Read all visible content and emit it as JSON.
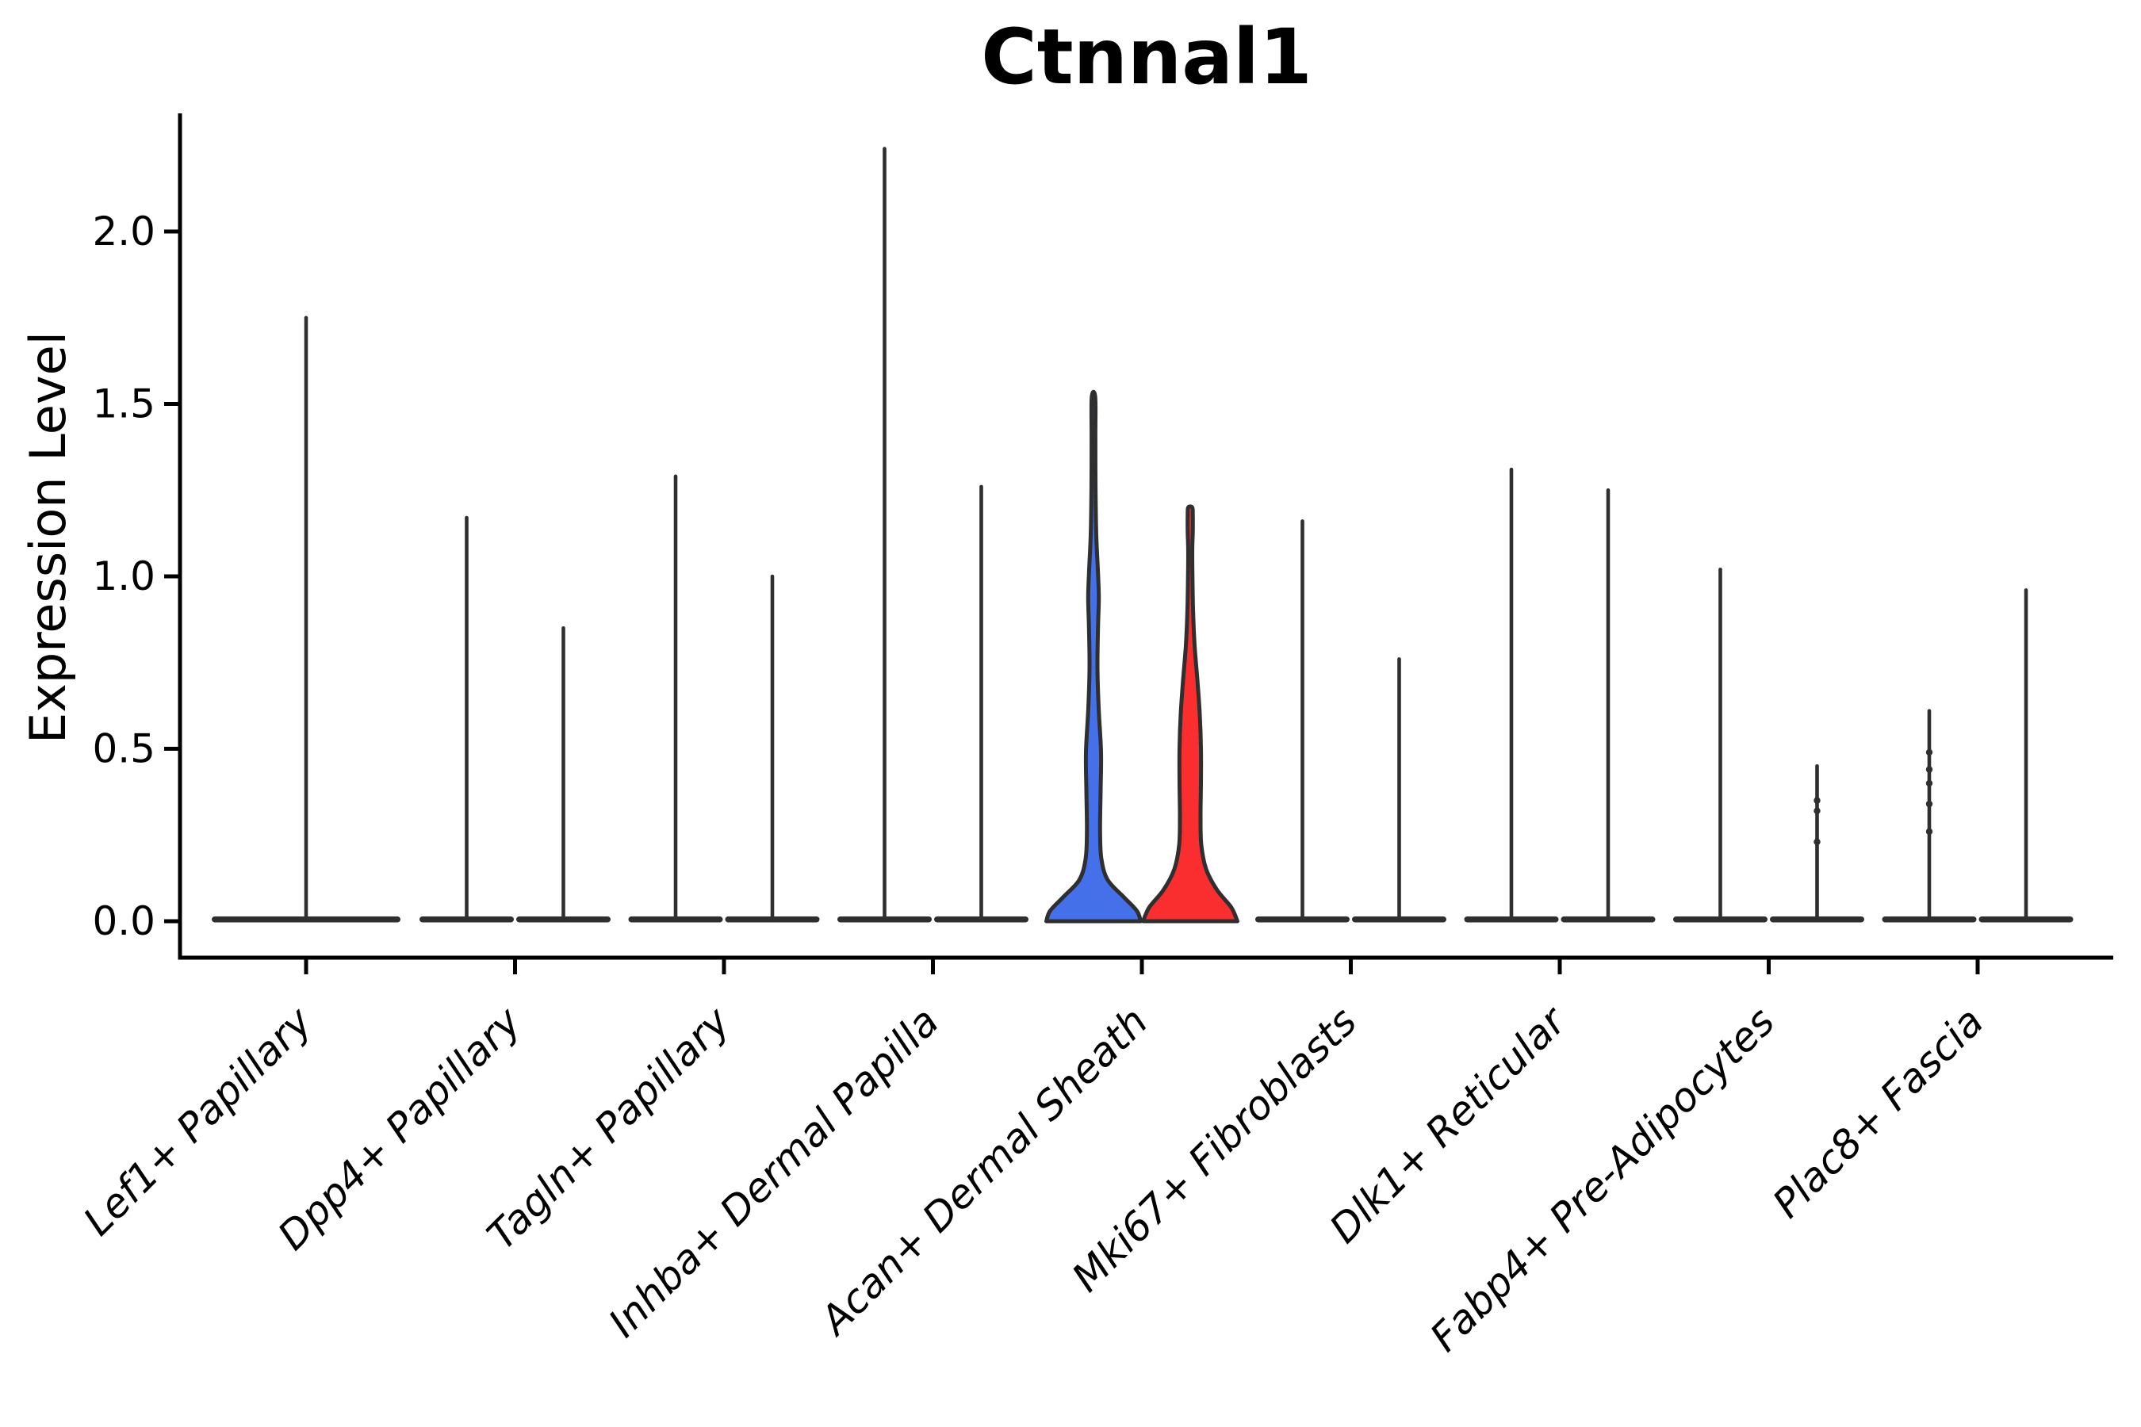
{
  "chart_data": {
    "type": "violin",
    "title": "Ctnnal1",
    "xlabel": "",
    "ylabel": "Expression Level",
    "ylim": [
      0,
      2.34
    ],
    "yticks": [
      0.0,
      0.5,
      1.0,
      1.5,
      2.0
    ],
    "ytick_labels": [
      "0.0",
      "0.5",
      "1.0",
      "1.5",
      "2.0"
    ],
    "grid": false,
    "legend": "none",
    "text_color": "#000000",
    "outline_color": "#2f2f2f",
    "split_colors": {
      "left": "#4470ea",
      "right": "#fa2e2e"
    },
    "categories": [
      "Lef1+ Papillary",
      "Dpp4+ Papillary",
      "Tagln+ Papillary",
      "Inhba+ Dermal Papilla",
      "Acan+ Dermal Sheath",
      "Mki67+ Fibroblasts",
      "Dlk1+ Reticular",
      "Fabp4+ Pre-Adipocytes",
      "Plac8+ Fascia"
    ],
    "groups": [
      {
        "category": "Lef1+ Papillary",
        "violins": [
          {
            "side": "full",
            "shape": "spike",
            "max": 1.75
          }
        ]
      },
      {
        "category": "Dpp4+ Papillary",
        "violins": [
          {
            "side": "left",
            "shape": "spike",
            "max": 1.17
          },
          {
            "side": "right",
            "shape": "spike",
            "max": 0.85
          }
        ]
      },
      {
        "category": "Tagln+ Papillary",
        "violins": [
          {
            "side": "left",
            "shape": "spike",
            "max": 1.29
          },
          {
            "side": "right",
            "shape": "spike",
            "max": 1.0
          }
        ]
      },
      {
        "category": "Inhba+ Dermal Papilla",
        "violins": [
          {
            "side": "left",
            "shape": "spike",
            "max": 2.24
          },
          {
            "side": "right",
            "shape": "spike",
            "max": 1.26
          }
        ]
      },
      {
        "category": "Acan+ Dermal Sheath",
        "violins": [
          {
            "side": "left",
            "shape": "violin",
            "max": 1.52,
            "fill": "#4470ea",
            "profile": [
              [
                0.0,
                1.0
              ],
              [
                0.03,
                0.92
              ],
              [
                0.07,
                0.64
              ],
              [
                0.12,
                0.3
              ],
              [
                0.18,
                0.168
              ],
              [
                0.26,
                0.139
              ],
              [
                0.38,
                0.151
              ],
              [
                0.49,
                0.16
              ],
              [
                0.62,
                0.109
              ],
              [
                0.74,
                0.084
              ],
              [
                0.86,
                0.097
              ],
              [
                0.94,
                0.113
              ],
              [
                1.02,
                0.092
              ],
              [
                1.12,
                0.059
              ],
              [
                1.25,
                0.044
              ],
              [
                1.4,
                0.04
              ],
              [
                1.52,
                0.037
              ]
            ]
          },
          {
            "side": "right",
            "shape": "violin",
            "max": 1.2,
            "fill": "#fa2e2e",
            "profile": [
              [
                0.0,
                1.0
              ],
              [
                0.04,
                0.87
              ],
              [
                0.09,
                0.57
              ],
              [
                0.15,
                0.34
              ],
              [
                0.22,
                0.235
              ],
              [
                0.3,
                0.218
              ],
              [
                0.4,
                0.227
              ],
              [
                0.5,
                0.227
              ],
              [
                0.6,
                0.202
              ],
              [
                0.7,
                0.151
              ],
              [
                0.8,
                0.092
              ],
              [
                0.9,
                0.06
              ],
              [
                1.0,
                0.047
              ],
              [
                1.08,
                0.044
              ],
              [
                1.13,
                0.054
              ],
              [
                1.18,
                0.054
              ],
              [
                1.2,
                0.042
              ]
            ]
          }
        ]
      },
      {
        "category": "Mki67+ Fibroblasts",
        "violins": [
          {
            "side": "left",
            "shape": "spike",
            "max": 1.16
          },
          {
            "side": "right",
            "shape": "spike",
            "max": 0.76
          }
        ]
      },
      {
        "category": "Dlk1+ Reticular",
        "violins": [
          {
            "side": "left",
            "shape": "spike",
            "max": 1.31
          },
          {
            "side": "right",
            "shape": "spike",
            "max": 1.25
          }
        ]
      },
      {
        "category": "Fabp4+ Pre-Adipocytes",
        "violins": [
          {
            "side": "left",
            "shape": "spike",
            "max": 1.02
          },
          {
            "side": "right",
            "shape": "spike",
            "max": 0.45,
            "knots": [
              0.35,
              0.32,
              0.23
            ]
          }
        ]
      },
      {
        "category": "Plac8+ Fascia",
        "violins": [
          {
            "side": "left",
            "shape": "spike",
            "max": 0.61,
            "knots": [
              0.49,
              0.44,
              0.4,
              0.34,
              0.26
            ]
          },
          {
            "side": "right",
            "shape": "spike",
            "max": 0.96
          }
        ]
      }
    ]
  }
}
